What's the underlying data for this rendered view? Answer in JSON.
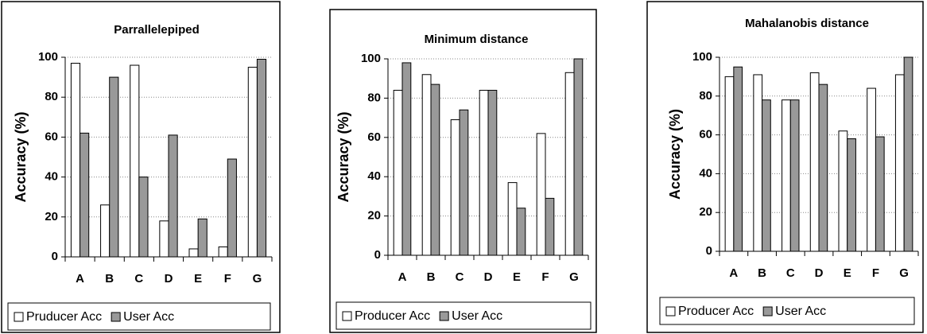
{
  "chart_data": [
    {
      "type": "bar",
      "title": "Parrallelepiped",
      "y_label": "Accuracy (%)",
      "categories": [
        "A",
        "B",
        "C",
        "D",
        "E",
        "F",
        "G"
      ],
      "series": [
        {
          "name": "Pruducer Acc",
          "color": "#ffffff",
          "values": [
            97,
            26,
            96,
            18,
            4,
            5,
            95
          ]
        },
        {
          "name": "User Acc",
          "color": "#999999",
          "values": [
            62,
            90,
            40,
            61,
            19,
            49,
            99
          ]
        }
      ],
      "ylim": [
        0,
        100
      ],
      "yticks": [
        0,
        20,
        40,
        60,
        80,
        100
      ],
      "grid": true
    },
    {
      "type": "bar",
      "title": "Minimum distance",
      "y_label": "Accuracy (%)",
      "categories": [
        "A",
        "B",
        "C",
        "D",
        "E",
        "F",
        "G"
      ],
      "series": [
        {
          "name": "Producer Acc",
          "color": "#ffffff",
          "values": [
            84,
            92,
            69,
            84,
            37,
            62,
            93
          ]
        },
        {
          "name": "User Acc",
          "color": "#999999",
          "values": [
            98,
            87,
            74,
            84,
            24,
            29,
            100
          ]
        }
      ],
      "ylim": [
        0,
        100
      ],
      "yticks": [
        0,
        20,
        40,
        60,
        80,
        100
      ],
      "grid": true
    },
    {
      "type": "bar",
      "title": "Mahalanobis distance",
      "y_label": "Accuracy (%)",
      "categories": [
        "A",
        "B",
        "C",
        "D",
        "E",
        "F",
        "G"
      ],
      "series": [
        {
          "name": "Producer Acc",
          "color": "#ffffff",
          "values": [
            90,
            91,
            78,
            92,
            62,
            84,
            91
          ]
        },
        {
          "name": "User Acc",
          "color": "#999999",
          "values": [
            95,
            78,
            78,
            86,
            58,
            59,
            100
          ]
        }
      ],
      "ylim": [
        0,
        100
      ],
      "yticks": [
        0,
        20,
        40,
        60,
        80,
        100
      ],
      "grid": true
    }
  ]
}
